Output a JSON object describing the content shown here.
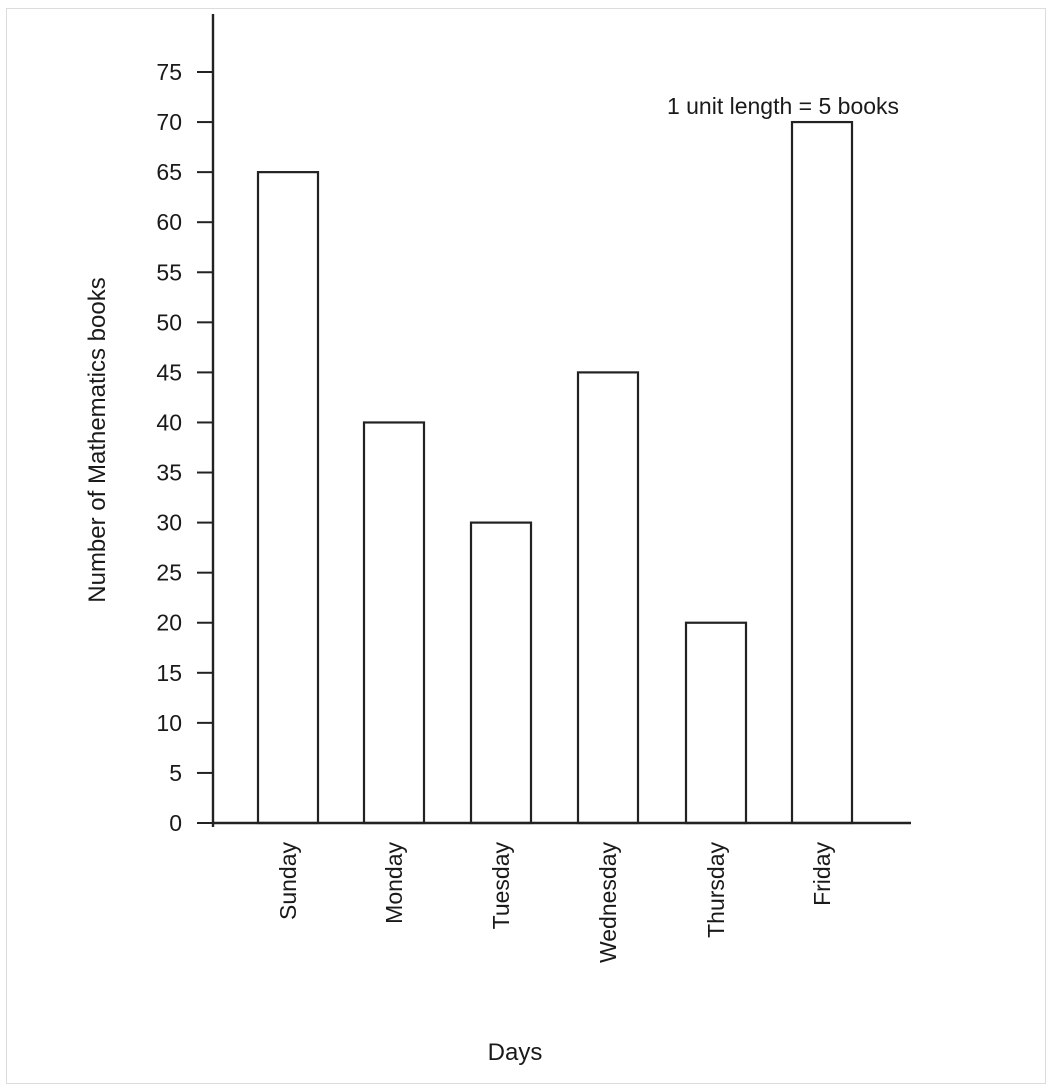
{
  "chart_data": {
    "type": "bar",
    "categories": [
      "Sunday",
      "Monday",
      "Tuesday",
      "Wednesday",
      "Thursday",
      "Friday"
    ],
    "values": [
      65,
      40,
      30,
      45,
      20,
      70
    ],
    "xlabel": "Days",
    "ylabel": "Number of Mathematics books",
    "annotation": "1 unit length = 5 books",
    "yticks": [
      0,
      5,
      10,
      15,
      20,
      25,
      30,
      35,
      40,
      45,
      50,
      55,
      60,
      65,
      70,
      75
    ],
    "ylim": [
      0,
      75
    ],
    "grid": false,
    "bar_fill": "#ffffff",
    "bar_stroke": "#222222"
  }
}
